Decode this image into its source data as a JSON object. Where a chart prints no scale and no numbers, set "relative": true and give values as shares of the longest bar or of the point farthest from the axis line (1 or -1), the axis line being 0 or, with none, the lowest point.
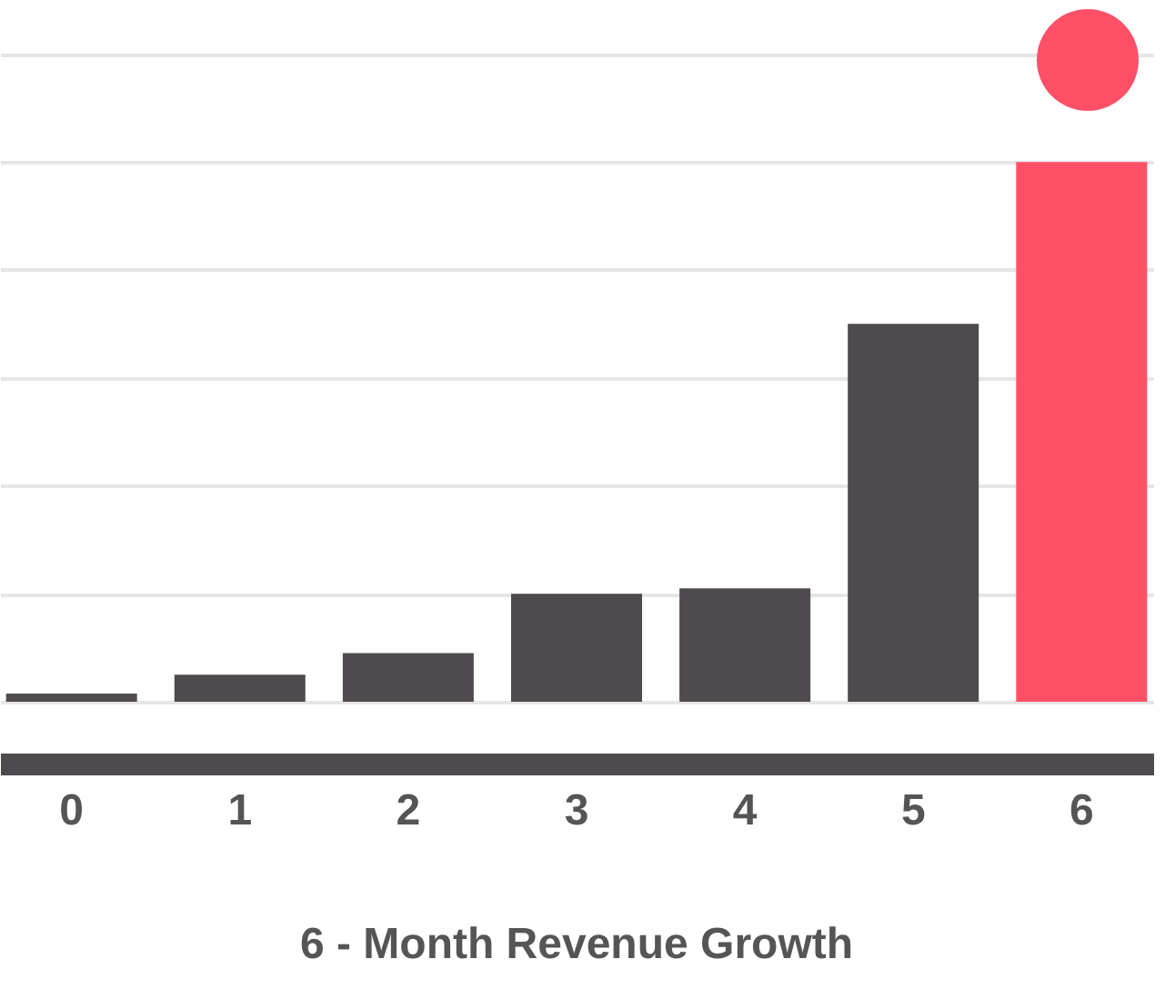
{
  "chart_data": {
    "type": "bar",
    "title": "6 - Month Revenue Growth",
    "categories": [
      "0",
      "1",
      "2",
      "3",
      "4",
      "5",
      "6"
    ],
    "values": [
      0.015,
      0.05,
      0.09,
      0.2,
      0.21,
      0.7,
      1
    ],
    "colors": [
      "#4f4a4d",
      "#4f4a4d",
      "#4f4a4d",
      "#4f4a4d",
      "#4f4a4d",
      "#4f4a4d",
      "#ff5067"
    ],
    "relative": true,
    "grid": "y"
  }
}
